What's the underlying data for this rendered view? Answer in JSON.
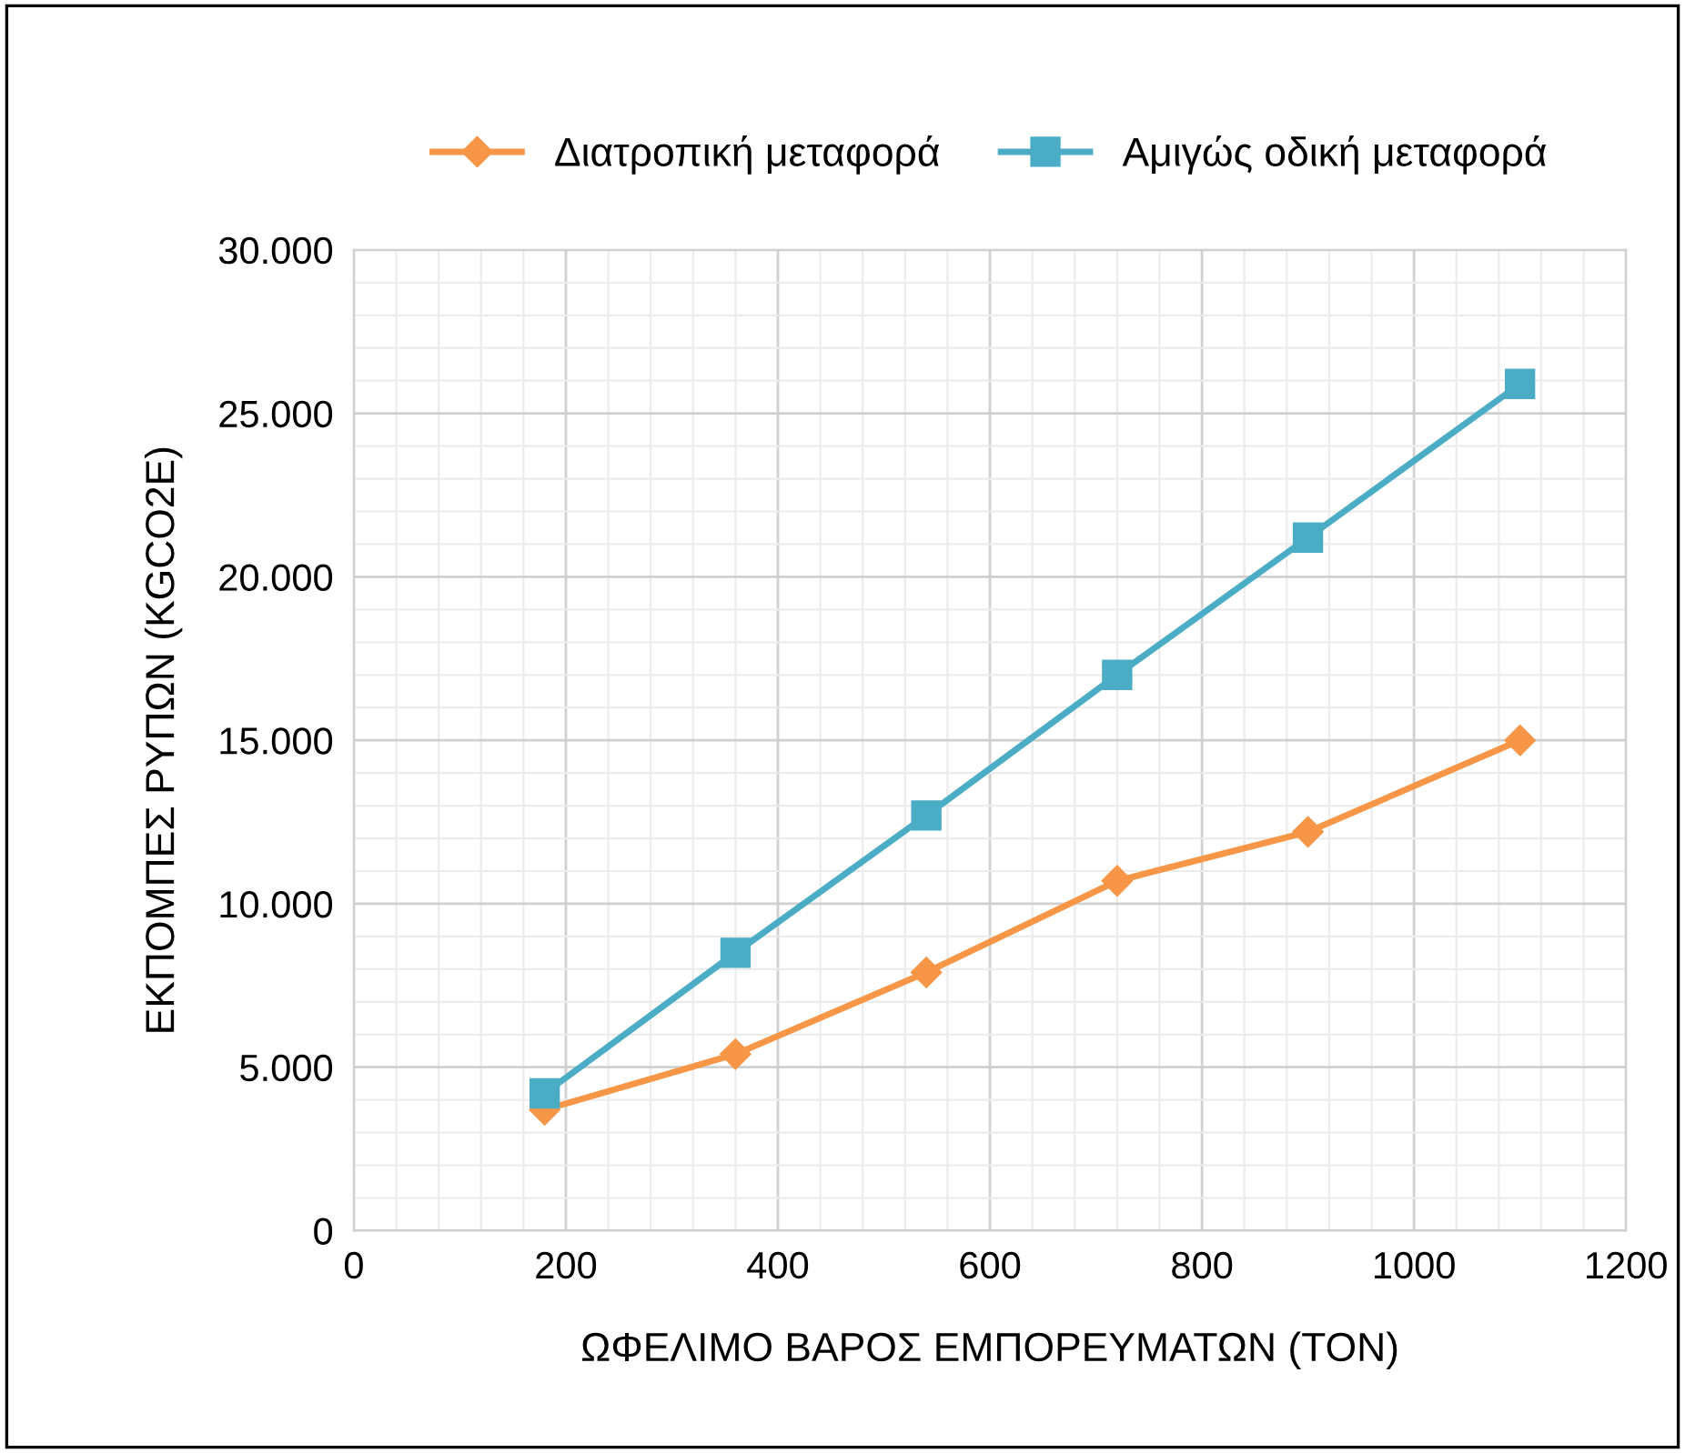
{
  "chart_data": {
    "type": "line",
    "xlabel": "ΩΦΕΛΙΜΟ ΒΑΡΟΣ ΕΜΠΟΡΕΥΜΑΤΩΝ (ΤΟΝ)",
    "ylabel": "ΕΚΠΟΜΠΕΣ ΡΥΠΩΝ (KGCO2E)",
    "x": [
      180,
      360,
      540,
      720,
      900,
      1100
    ],
    "series": [
      {
        "name": "Διατροπική μεταφορά",
        "color": "#f79646",
        "marker": "diamond",
        "values": [
          3700,
          5400,
          7900,
          10700,
          12200,
          15000
        ]
      },
      {
        "name": "Αμιγώς οδική μεταφορά",
        "color": "#4bacc6",
        "marker": "square",
        "values": [
          4200,
          8500,
          12700,
          17000,
          21200,
          25900
        ]
      }
    ],
    "xlim": [
      0,
      1200
    ],
    "xticks": [
      0,
      200,
      400,
      600,
      800,
      1000,
      1200
    ],
    "ylim": [
      0,
      30000
    ],
    "yticks": [
      0,
      {
        "value": 5000,
        "label": "5.000"
      },
      {
        "value": 10000,
        "label": "10.000"
      },
      {
        "value": 15000,
        "label": "15.000"
      },
      {
        "value": 20000,
        "label": "20.000"
      },
      {
        "value": 25000,
        "label": "25.000"
      },
      {
        "value": 30000,
        "label": "30.000"
      }
    ],
    "grid": true,
    "legend": "top",
    "line_style": "solid"
  }
}
